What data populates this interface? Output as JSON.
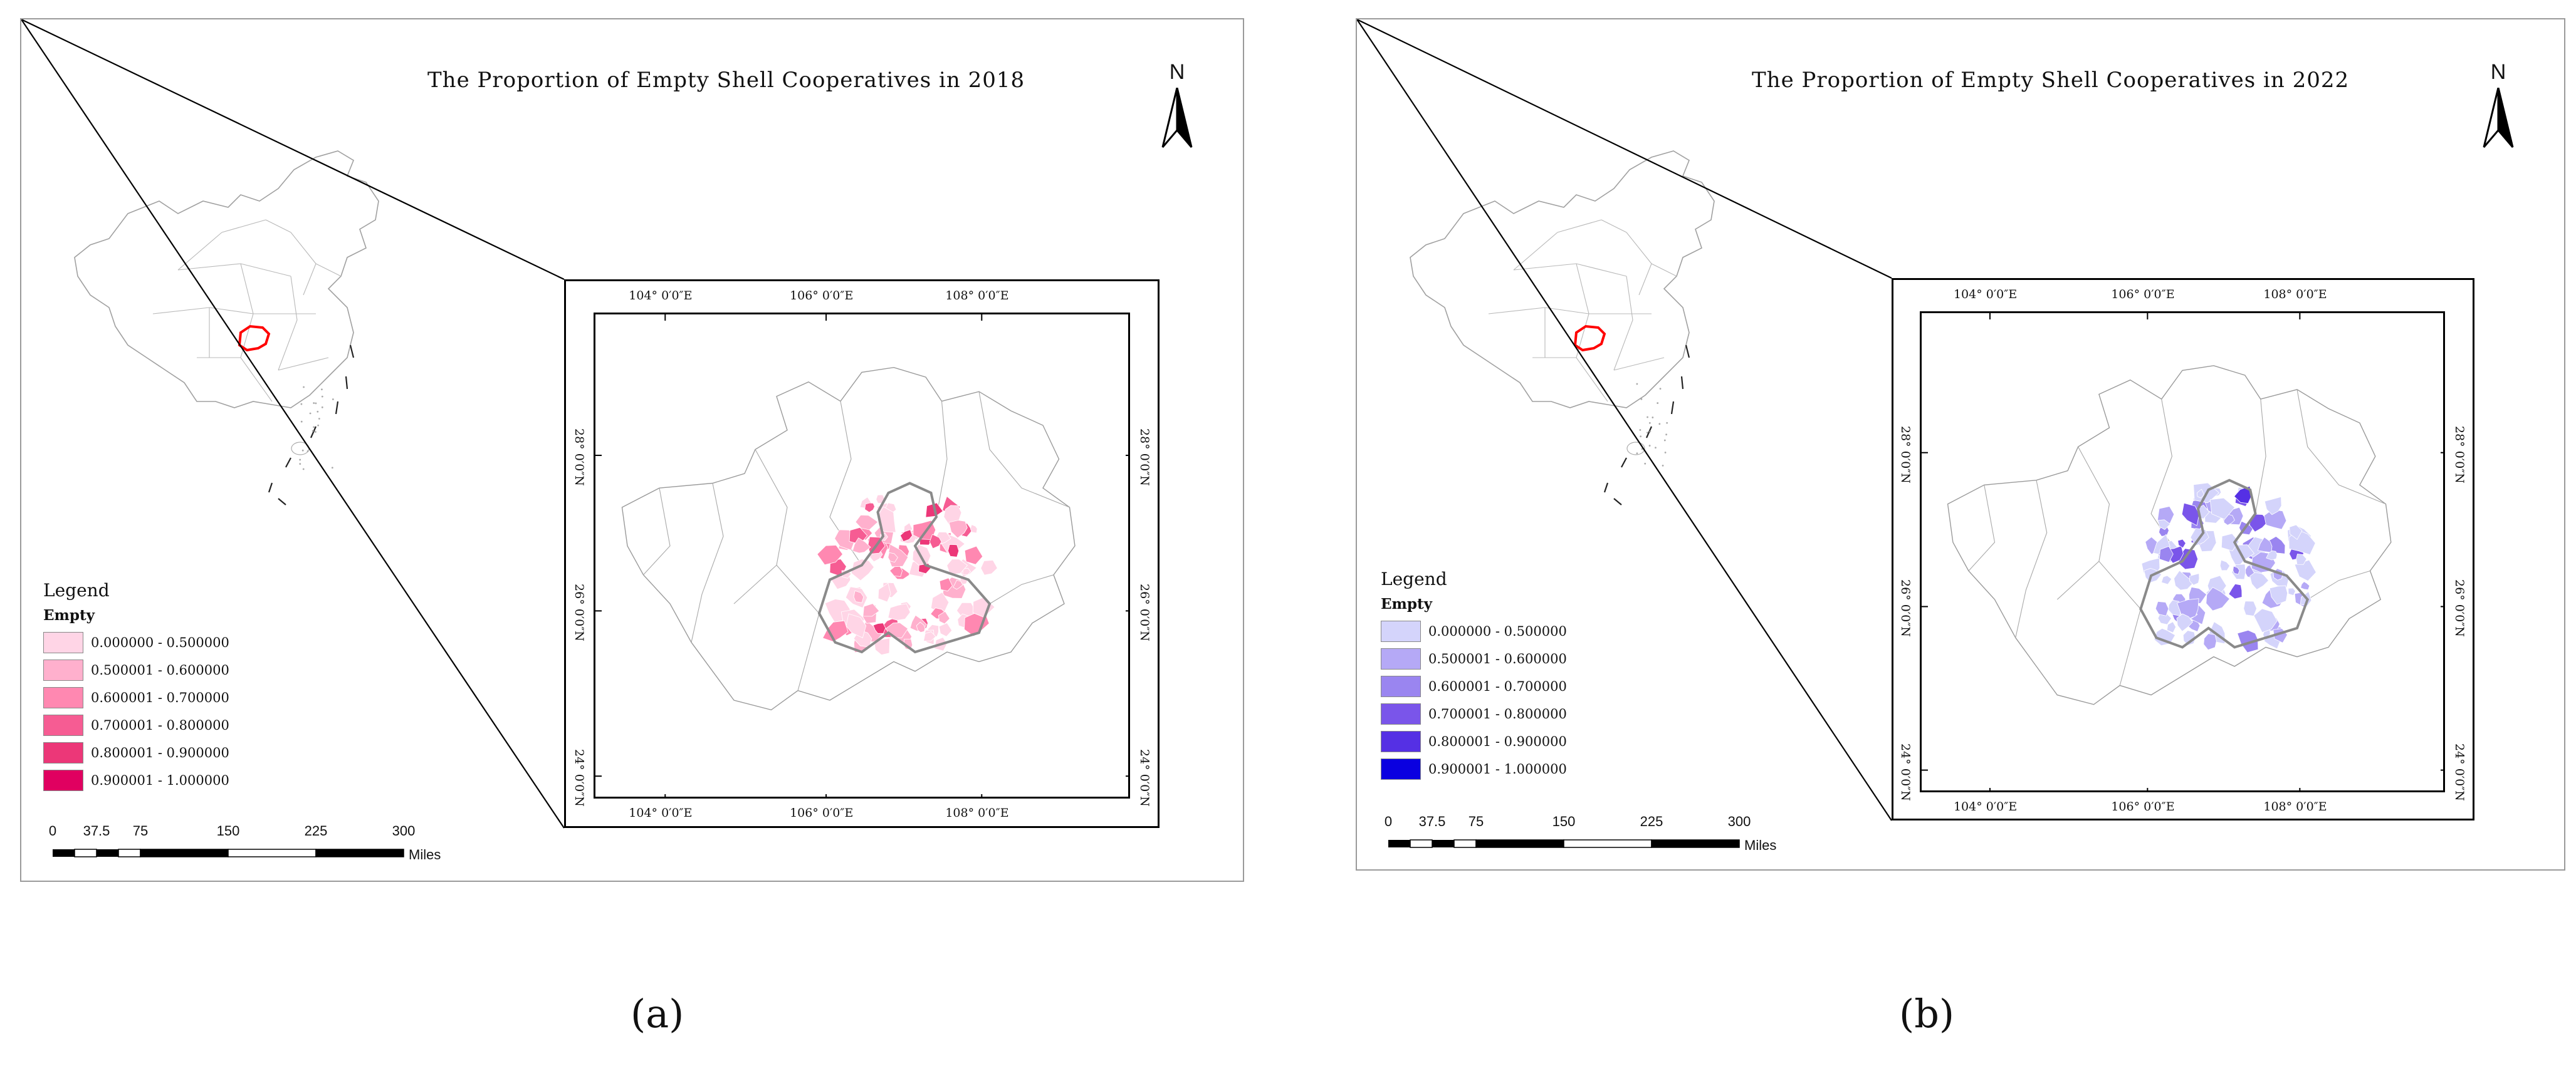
{
  "panels": [
    {
      "title": "The Proportion of Empty Shell Cooperatives in 2018",
      "north": "N",
      "caption": "(a)",
      "accent": "#e0005a",
      "legend": {
        "title": "Legend",
        "field": "Empty",
        "classes": [
          {
            "label": "0.000000 - 0.500000",
            "color": "#ffd5e6"
          },
          {
            "label": "0.500001 - 0.600000",
            "color": "#ffb0cd"
          },
          {
            "label": "0.600001 - 0.700000",
            "color": "#ff88b1"
          },
          {
            "label": "0.700001 - 0.800000",
            "color": "#f65c93"
          },
          {
            "label": "0.800001 - 0.900000",
            "color": "#ec3778"
          },
          {
            "label": "0.900001 - 1.000000",
            "color": "#e00060"
          }
        ]
      },
      "ticks": {
        "top": [
          "104° 0′0″E",
          "106° 0′0″E",
          "108° 0′0″E"
        ],
        "bottom": [
          "104° 0′0″E",
          "106° 0′0″E",
          "108° 0′0″E"
        ],
        "left": [
          "28° 0′0″N",
          "26° 0′0″N",
          "24° 0′0″N"
        ],
        "right": [
          "28° 0′0″N",
          "26° 0′0″N",
          "24° 0′0″N"
        ]
      },
      "scale": {
        "values": [
          "0",
          "37.5",
          "75",
          "150",
          "225",
          "300"
        ],
        "unit": "Miles"
      }
    },
    {
      "title": "The Proportion of Empty Shell Cooperatives in 2022",
      "north": "N",
      "caption": "(b)",
      "accent": "#0000e0",
      "legend": {
        "title": "Legend",
        "field": "Empty",
        "classes": [
          {
            "label": "0.000000 - 0.500000",
            "color": "#d4d4fb"
          },
          {
            "label": "0.500001 - 0.600000",
            "color": "#b5a9f6"
          },
          {
            "label": "0.600001 - 0.700000",
            "color": "#9a85f0"
          },
          {
            "label": "0.700001 - 0.800000",
            "color": "#7a55ea"
          },
          {
            "label": "0.800001 - 0.900000",
            "color": "#5530e4"
          },
          {
            "label": "0.900001 - 1.000000",
            "color": "#0a00e0"
          }
        ]
      },
      "ticks": {
        "top": [
          "104° 0′0″E",
          "106° 0′0″E",
          "108° 0′0″E"
        ],
        "bottom": [
          "104° 0′0″E",
          "106° 0′0″E",
          "108° 0′0″E"
        ],
        "left": [
          "28° 0′0″N",
          "26° 0′0″N",
          "24° 0′0″N"
        ],
        "right": [
          "28° 0′0″N",
          "26° 0′0″N",
          "24° 0′0″N"
        ]
      },
      "scale": {
        "values": [
          "0",
          "37.5",
          "75",
          "150",
          "225",
          "300"
        ],
        "unit": "Miles"
      }
    }
  ],
  "colors": {
    "frame": "#000000",
    "outline": "#9a9a9a",
    "highlight": "#ff0000",
    "focus_border": "#808080"
  }
}
